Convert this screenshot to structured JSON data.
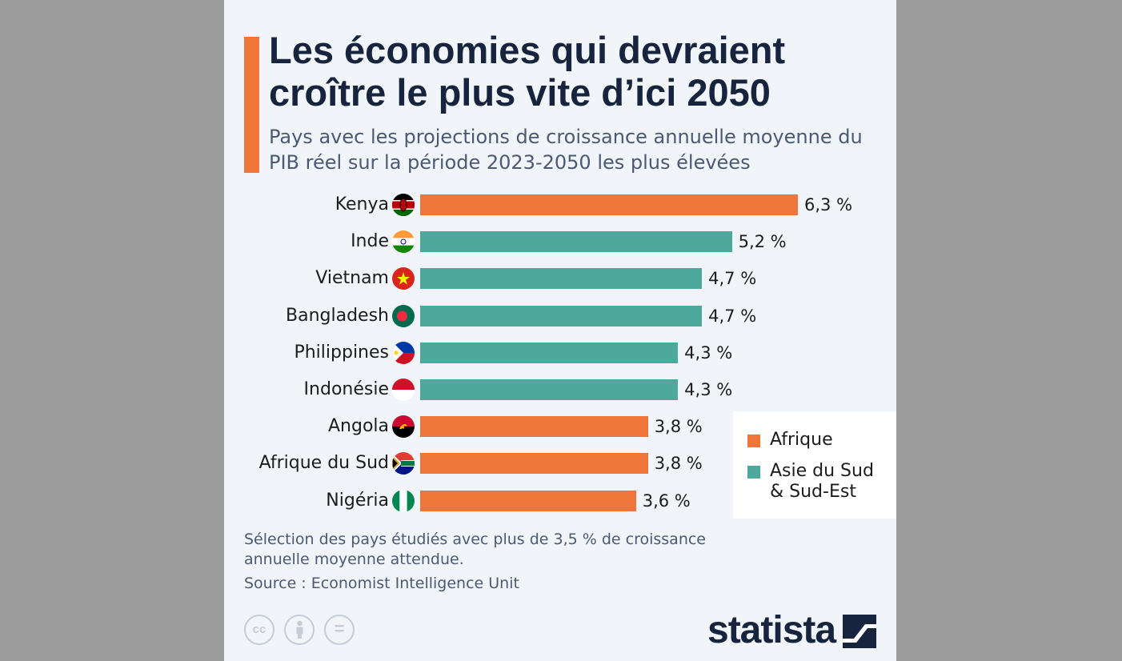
{
  "title": "Les économies qui devraient croître le plus vite d’ici 2050",
  "subtitle": "Pays avec les projections de croissance annuelle moyenne du PIB réel sur la période 2023-2050 les plus élevées",
  "note": "Sélection des pays étudiés avec plus de 3,5 % de croissance annuelle moyenne attendue.",
  "source": "Source : Economist Intelligence Unit",
  "brand": "statista",
  "colors": {
    "africa": "#ee763a",
    "asia": "#4ea89b",
    "accent": "#ee763a",
    "title": "#16243d"
  },
  "legend": [
    {
      "label": "Afrique",
      "color": "#ee763a"
    },
    {
      "label": "Asie du Sud & Sud-Est",
      "color": "#4ea89b"
    }
  ],
  "license_icons": [
    "cc-icon",
    "attribution-icon",
    "no-derivatives-icon"
  ],
  "chart_data": {
    "type": "bar",
    "orientation": "horizontal",
    "categories": [
      "Kenya",
      "Inde",
      "Vietnam",
      "Bangladesh",
      "Philippines",
      "Indonésie",
      "Angola",
      "Afrique du Sud",
      "Nigéria"
    ],
    "values": [
      6.3,
      5.2,
      4.7,
      4.7,
      4.3,
      4.3,
      3.8,
      3.8,
      3.6
    ],
    "value_labels": [
      "6,3 %",
      "5,2 %",
      "4,7 %",
      "4,7 %",
      "4,3 %",
      "4,3 %",
      "3,8 %",
      "3,8 %",
      "3,6 %"
    ],
    "groups": [
      "Afrique",
      "Asie du Sud & Sud-Est",
      "Asie du Sud & Sud-Est",
      "Asie du Sud & Sud-Est",
      "Asie du Sud & Sud-Est",
      "Asie du Sud & Sud-Est",
      "Afrique",
      "Afrique",
      "Afrique"
    ],
    "flags": [
      "kenya-flag-icon",
      "india-flag-icon",
      "vietnam-flag-icon",
      "bangladesh-flag-icon",
      "philippines-flag-icon",
      "indonesia-flag-icon",
      "angola-flag-icon",
      "south-africa-flag-icon",
      "nigeria-flag-icon"
    ],
    "legend_position": "right",
    "grid": false
  }
}
